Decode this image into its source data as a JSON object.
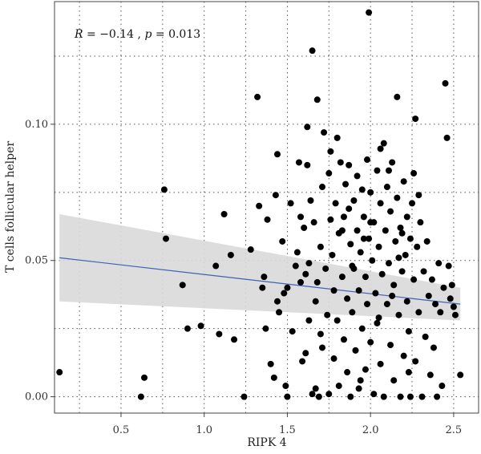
{
  "chart_data": {
    "type": "scatter",
    "title": "",
    "xlabel": "RIPK 4",
    "ylabel": "T cells follicular helper",
    "annotation": {
      "r_label": "R",
      "r_value": "−0.14",
      "p_label": "p",
      "p_value": "0.013"
    },
    "xlim": [
      0.1,
      2.65
    ],
    "ylim": [
      -0.006,
      0.145
    ],
    "x_ticks": [
      0.5,
      1.0,
      1.5,
      2.0,
      2.5
    ],
    "x_tick_labels": [
      "0.5",
      "1.0",
      "1.5",
      "2.0",
      "2.5"
    ],
    "y_ticks": [
      0.0,
      0.05,
      0.1
    ],
    "y_tick_labels": [
      "0.00",
      "0.05",
      "0.10"
    ],
    "grid": true,
    "regression": {
      "x": [
        0.13,
        2.54
      ],
      "y": [
        0.051,
        0.034
      ],
      "ci_upper": [
        0.067,
        0.04
      ],
      "ci_lower": [
        0.035,
        0.028
      ]
    },
    "colors": {
      "points": "#000000",
      "line": "#3a62b5",
      "band": "#d9d9d9",
      "grid": "#555555"
    },
    "points": [
      [
        0.13,
        0.009
      ],
      [
        0.62,
        0.0
      ],
      [
        0.64,
        0.007
      ],
      [
        0.76,
        0.076
      ],
      [
        0.77,
        0.058
      ],
      [
        0.87,
        0.041
      ],
      [
        0.9,
        0.025
      ],
      [
        0.98,
        0.026
      ],
      [
        1.07,
        0.048
      ],
      [
        1.09,
        0.023
      ],
      [
        1.12,
        0.067
      ],
      [
        1.16,
        0.052
      ],
      [
        1.18,
        0.021
      ],
      [
        1.24,
        0.0
      ],
      [
        1.28,
        0.054
      ],
      [
        1.32,
        0.11
      ],
      [
        1.33,
        0.07
      ],
      [
        1.36,
        0.044
      ],
      [
        1.35,
        0.04
      ],
      [
        1.37,
        0.025
      ],
      [
        1.38,
        0.065
      ],
      [
        1.4,
        0.012
      ],
      [
        1.42,
        0.007
      ],
      [
        1.43,
        0.074
      ],
      [
        1.44,
        0.089
      ],
      [
        1.44,
        0.035
      ],
      [
        1.45,
        0.031
      ],
      [
        1.47,
        0.057
      ],
      [
        1.48,
        0.038
      ],
      [
        1.49,
        0.004
      ],
      [
        1.5,
        0.0
      ],
      [
        1.5,
        0.04
      ],
      [
        1.52,
        0.071
      ],
      [
        1.53,
        0.024
      ],
      [
        1.55,
        0.048
      ],
      [
        1.56,
        0.053
      ],
      [
        1.57,
        0.086
      ],
      [
        1.58,
        0.042
      ],
      [
        1.59,
        0.013
      ],
      [
        1.6,
        0.062
      ],
      [
        1.61,
        0.045
      ],
      [
        1.61,
        0.016
      ],
      [
        1.62,
        0.099
      ],
      [
        1.62,
        0.085
      ],
      [
        1.63,
        0.028
      ],
      [
        1.64,
        0.072
      ],
      [
        1.65,
        0.127
      ],
      [
        1.65,
        0.001
      ],
      [
        1.66,
        0.064
      ],
      [
        1.67,
        0.035
      ],
      [
        1.67,
        0.003
      ],
      [
        1.68,
        0.109
      ],
      [
        1.68,
        0.042
      ],
      [
        1.69,
        0.0
      ],
      [
        1.7,
        0.055
      ],
      [
        1.71,
        0.077
      ],
      [
        1.71,
        0.018
      ],
      [
        1.72,
        0.097
      ],
      [
        1.73,
        0.047
      ],
      [
        1.74,
        0.03
      ],
      [
        1.75,
        0.082
      ],
      [
        1.75,
        0.001
      ],
      [
        1.76,
        0.065
      ],
      [
        1.77,
        0.052
      ],
      [
        1.78,
        0.039
      ],
      [
        1.78,
        0.014
      ],
      [
        1.79,
        0.071
      ],
      [
        1.8,
        0.095
      ],
      [
        1.8,
        0.028
      ],
      [
        1.81,
        0.06
      ],
      [
        1.81,
        0.004
      ],
      [
        1.82,
        0.086
      ],
      [
        1.83,
        0.044
      ],
      [
        1.84,
        0.021
      ],
      [
        1.84,
        0.066
      ],
      [
        1.85,
        0.078
      ],
      [
        1.86,
        0.036
      ],
      [
        1.86,
        0.009
      ],
      [
        1.87,
        0.085
      ],
      [
        1.88,
        0.056
      ],
      [
        1.88,
        0.0
      ],
      [
        1.89,
        0.031
      ],
      [
        1.9,
        0.072
      ],
      [
        1.9,
        0.047
      ],
      [
        1.91,
        0.017
      ],
      [
        1.92,
        0.081
      ],
      [
        1.92,
        0.061
      ],
      [
        1.93,
        0.039
      ],
      [
        1.93,
        0.003
      ],
      [
        1.94,
        0.053
      ],
      [
        1.95,
        0.076
      ],
      [
        1.95,
        0.025
      ],
      [
        1.96,
        0.066
      ],
      [
        1.97,
        0.044
      ],
      [
        1.97,
        0.01
      ],
      [
        1.98,
        0.087
      ],
      [
        1.98,
        0.034
      ],
      [
        1.99,
        0.141
      ],
      [
        1.99,
        0.058
      ],
      [
        2.0,
        0.02
      ],
      [
        2.0,
        0.075
      ],
      [
        2.01,
        0.05
      ],
      [
        2.02,
        0.001
      ],
      [
        2.02,
        0.064
      ],
      [
        2.03,
        0.038
      ],
      [
        2.04,
        0.083
      ],
      [
        2.04,
        0.027
      ],
      [
        2.05,
        0.055
      ],
      [
        2.06,
        0.071
      ],
      [
        2.06,
        0.012
      ],
      [
        2.07,
        0.045
      ],
      [
        2.08,
        0.093
      ],
      [
        2.08,
        0.0
      ],
      [
        2.09,
        0.061
      ],
      [
        2.1,
        0.034
      ],
      [
        2.1,
        0.077
      ],
      [
        2.11,
        0.049
      ],
      [
        2.12,
        0.019
      ],
      [
        2.12,
        0.068
      ],
      [
        2.13,
        0.086
      ],
      [
        2.14,
        0.041
      ],
      [
        2.14,
        0.006
      ],
      [
        2.15,
        0.057
      ],
      [
        2.16,
        0.073
      ],
      [
        2.16,
        0.11
      ],
      [
        2.17,
        0.03
      ],
      [
        2.18,
        0.062
      ],
      [
        2.18,
        0.0
      ],
      [
        2.19,
        0.046
      ],
      [
        2.2,
        0.079
      ],
      [
        2.2,
        0.015
      ],
      [
        2.21,
        0.052
      ],
      [
        2.22,
        0.066
      ],
      [
        2.22,
        0.035
      ],
      [
        2.23,
        0.024
      ],
      [
        2.24,
        0.058
      ],
      [
        2.24,
        0.0
      ],
      [
        2.25,
        0.071
      ],
      [
        2.26,
        0.043
      ],
      [
        2.26,
        0.082
      ],
      [
        2.27,
        0.102
      ],
      [
        2.27,
        0.013
      ],
      [
        2.28,
        0.055
      ],
      [
        2.29,
        0.031
      ],
      [
        2.3,
        0.064
      ],
      [
        2.31,
        0.0
      ],
      [
        2.32,
        0.046
      ],
      [
        2.33,
        0.022
      ],
      [
        2.34,
        0.057
      ],
      [
        2.35,
        0.037
      ],
      [
        2.36,
        0.008
      ],
      [
        2.37,
        0.043
      ],
      [
        2.38,
        0.018
      ],
      [
        2.39,
        0.034
      ],
      [
        2.4,
        0.0
      ],
      [
        2.41,
        0.049
      ],
      [
        2.42,
        0.031
      ],
      [
        2.43,
        0.004
      ],
      [
        2.44,
        0.04
      ],
      [
        2.45,
        0.115
      ],
      [
        2.46,
        0.095
      ],
      [
        2.47,
        0.048
      ],
      [
        2.48,
        0.036
      ],
      [
        2.49,
        0.041
      ],
      [
        2.5,
        0.033
      ],
      [
        2.51,
        0.03
      ],
      [
        2.54,
        0.008
      ],
      [
        1.58,
        0.066
      ],
      [
        1.63,
        0.049
      ],
      [
        1.7,
        0.023
      ],
      [
        1.76,
        0.09
      ],
      [
        1.83,
        0.061
      ],
      [
        1.89,
        0.048
      ],
      [
        1.94,
        0.006
      ],
      [
        2.0,
        0.064
      ],
      [
        2.05,
        0.029
      ],
      [
        2.11,
        0.083
      ],
      [
        2.17,
        0.051
      ],
      [
        2.23,
        0.009
      ],
      [
        2.29,
        0.074
      ],
      [
        2.06,
        0.091
      ],
      [
        1.96,
        0.058
      ],
      [
        1.87,
        0.069
      ],
      [
        2.13,
        0.037
      ],
      [
        2.19,
        0.06
      ]
    ]
  }
}
